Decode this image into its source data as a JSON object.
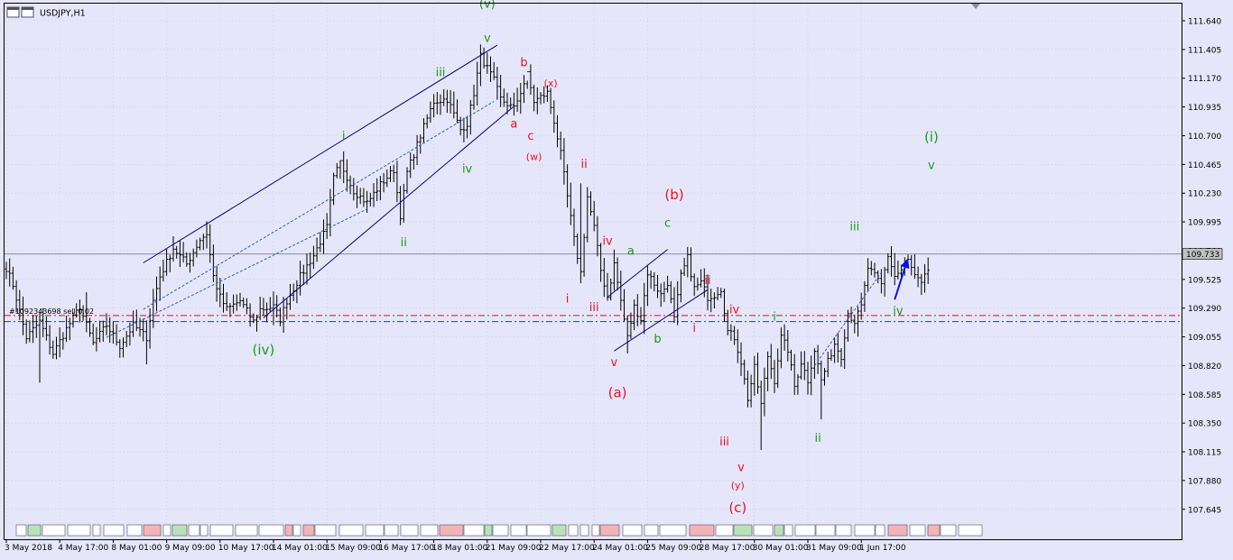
{
  "symbol": "USDJPY,H1",
  "colors": {
    "background": "#e6e6fa",
    "grid": "#c7c7d9",
    "bar": "#000000",
    "channel": "#000080",
    "green_label": "#1a9a1a",
    "red_label": "#e8141e",
    "level_red": "#d21414",
    "level_blue": "#1e3cb4",
    "bid_line": "#8c8c9c",
    "arrow": "#0a14dc",
    "price_tag": "#c0c0c0"
  },
  "chart_data": {
    "type": "ohlc",
    "timeframe": "H1",
    "ylim": [
      107.4,
      111.78
    ],
    "xlim": [
      0,
      318
    ],
    "current_price": "109.733",
    "y_ticks": [
      "111.640",
      "111.405",
      "111.170",
      "110.935",
      "110.700",
      "110.465",
      "110.230",
      "109.995",
      "109.760",
      "109.525",
      "109.290",
      "109.055",
      "108.820",
      "108.585",
      "108.350",
      "108.115",
      "107.880",
      "107.645"
    ],
    "x_ticks": [
      {
        "bar": 0,
        "label": "3 May 2018"
      },
      {
        "bar": 16,
        "label": "4 May 17:00"
      },
      {
        "bar": 32,
        "label": "8 May 01:00"
      },
      {
        "bar": 48,
        "label": "9 May 09:00"
      },
      {
        "bar": 64,
        "label": "10 May 17:00"
      },
      {
        "bar": 80,
        "label": "14 May 01:00"
      },
      {
        "bar": 96,
        "label": "15 May 09:00"
      },
      {
        "bar": 112,
        "label": "16 May 17:00"
      },
      {
        "bar": 128,
        "label": "18 May 01:00"
      },
      {
        "bar": 144,
        "label": "21 May 09:00"
      },
      {
        "bar": 160,
        "label": "22 May 17:00"
      },
      {
        "bar": 176,
        "label": "24 May 01:00"
      },
      {
        "bar": 192,
        "label": "25 May 09:00"
      },
      {
        "bar": 208,
        "label": "28 May 17:00"
      },
      {
        "bar": 224,
        "label": "30 May 01:00"
      },
      {
        "bar": 240,
        "label": "31 May 09:00"
      },
      {
        "bar": 256,
        "label": "1 Jun 17:00"
      }
    ],
    "price_path": [
      [
        0,
        109.62
      ],
      [
        2,
        109.48
      ],
      [
        6,
        109.05
      ],
      [
        10,
        109.18
      ],
      [
        14,
        108.92
      ],
      [
        18,
        109.12
      ],
      [
        22,
        109.3
      ],
      [
        26,
        109.0
      ],
      [
        30,
        109.15
      ],
      [
        34,
        108.98
      ],
      [
        38,
        109.15
      ],
      [
        42,
        109.05
      ],
      [
        44,
        109.35
      ],
      [
        46,
        109.55
      ],
      [
        50,
        109.78
      ],
      [
        54,
        109.65
      ],
      [
        58,
        109.85
      ],
      [
        60,
        109.9
      ],
      [
        62,
        109.55
      ],
      [
        64,
        109.38
      ],
      [
        66,
        109.28
      ],
      [
        70,
        109.35
      ],
      [
        74,
        109.18
      ],
      [
        76,
        109.28
      ],
      [
        80,
        109.3
      ],
      [
        82,
        109.2
      ],
      [
        84,
        109.35
      ],
      [
        88,
        109.55
      ],
      [
        92,
        109.72
      ],
      [
        96,
        109.95
      ],
      [
        98,
        110.35
      ],
      [
        100,
        110.48
      ],
      [
        104,
        110.25
      ],
      [
        108,
        110.15
      ],
      [
        112,
        110.3
      ],
      [
        116,
        110.42
      ],
      [
        118,
        110.05
      ],
      [
        120,
        110.4
      ],
      [
        124,
        110.7
      ],
      [
        128,
        110.98
      ],
      [
        132,
        111.0
      ],
      [
        136,
        110.75
      ],
      [
        138,
        110.8
      ],
      [
        140,
        111.05
      ],
      [
        142,
        111.35
      ],
      [
        144,
        111.25
      ],
      [
        146,
        111.15
      ],
      [
        148,
        111.0
      ],
      [
        152,
        110.92
      ],
      [
        156,
        111.2
      ],
      [
        158,
        110.98
      ],
      [
        162,
        111.05
      ],
      [
        164,
        110.82
      ],
      [
        166,
        110.55
      ],
      [
        170,
        109.85
      ],
      [
        172,
        109.58
      ],
      [
        174,
        110.2
      ],
      [
        176,
        109.95
      ],
      [
        178,
        109.6
      ],
      [
        180,
        109.38
      ],
      [
        182,
        109.65
      ],
      [
        184,
        109.35
      ],
      [
        186,
        109.05
      ],
      [
        188,
        109.3
      ],
      [
        190,
        109.2
      ],
      [
        192,
        109.58
      ],
      [
        196,
        109.4
      ],
      [
        198,
        109.5
      ],
      [
        200,
        109.2
      ],
      [
        202,
        109.55
      ],
      [
        204,
        109.7
      ],
      [
        206,
        109.45
      ],
      [
        208,
        109.5
      ],
      [
        210,
        109.38
      ],
      [
        212,
        109.4
      ],
      [
        214,
        109.45
      ],
      [
        216,
        109.1
      ],
      [
        218,
        109.05
      ],
      [
        220,
        108.85
      ],
      [
        222,
        108.55
      ],
      [
        224,
        108.8
      ],
      [
        226,
        108.5
      ],
      [
        228,
        108.9
      ],
      [
        230,
        108.7
      ],
      [
        232,
        109.05
      ],
      [
        234,
        108.95
      ],
      [
        236,
        108.65
      ],
      [
        238,
        108.85
      ],
      [
        240,
        108.7
      ],
      [
        242,
        108.95
      ],
      [
        244,
        108.7
      ],
      [
        246,
        108.85
      ],
      [
        248,
        109.0
      ],
      [
        250,
        108.9
      ],
      [
        252,
        109.25
      ],
      [
        254,
        109.18
      ],
      [
        256,
        109.3
      ],
      [
        258,
        109.62
      ],
      [
        262,
        109.48
      ],
      [
        264,
        109.72
      ],
      [
        266,
        109.55
      ],
      [
        268,
        109.6
      ],
      [
        270,
        109.68
      ],
      [
        272,
        109.55
      ],
      [
        274,
        109.48
      ],
      [
        276,
        109.6
      ]
    ],
    "extremes": [
      {
        "bar": 10,
        "low": 108.68
      },
      {
        "bar": 24,
        "high": 109.42
      },
      {
        "bar": 42,
        "low": 108.83
      },
      {
        "bar": 60,
        "high": 110.0
      },
      {
        "bar": 80,
        "low": 109.15
      },
      {
        "bar": 100,
        "high": 110.5
      },
      {
        "bar": 144,
        "high": 111.38
      },
      {
        "bar": 156,
        "high": 111.15
      },
      {
        "bar": 172,
        "high": 110.31
      },
      {
        "bar": 186,
        "low": 108.92
      },
      {
        "bar": 204,
        "high": 109.79
      },
      {
        "bar": 226,
        "low": 108.13
      },
      {
        "bar": 244,
        "low": 108.38
      },
      {
        "bar": 266,
        "high": 109.74
      }
    ],
    "levels": [
      {
        "price": 109.23,
        "style": "dash-dot",
        "color": "red"
      },
      {
        "price": 109.18,
        "style": "dash-dot",
        "color": "blue"
      },
      {
        "price": 109.733,
        "style": "solid",
        "color": "grey"
      }
    ],
    "trendlines": [
      {
        "from": [
          41,
          109.66
        ],
        "to": [
          147,
          111.44
        ],
        "style": "solid"
      },
      {
        "from": [
          77,
          109.21
        ],
        "to": [
          152,
          110.94
        ],
        "style": "solid"
      },
      {
        "from": [
          41,
          109.28
        ],
        "to": [
          146,
          110.98
        ],
        "style": "dotted"
      },
      {
        "from": [
          30,
          109.05
        ],
        "to": [
          108,
          110.1
        ],
        "style": "dotted"
      },
      {
        "from": [
          180,
          109.38
        ],
        "to": [
          198,
          109.77
        ],
        "style": "solid"
      },
      {
        "from": [
          182,
          108.94
        ],
        "to": [
          210,
          109.44
        ],
        "style": "solid"
      },
      {
        "from": [
          242,
          108.82
        ],
        "to": [
          262,
          109.58
        ],
        "style": "dotted"
      }
    ],
    "arrow": {
      "from": [
        266,
        109.36
      ],
      "to": [
        270,
        109.7
      ]
    },
    "annotations": [
      {
        "text": "(v)",
        "bar": 144,
        "price": 111.78,
        "color": "green"
      },
      {
        "text": "v",
        "bar": 144,
        "price": 111.5,
        "color": "green"
      },
      {
        "text": "b",
        "bar": 155,
        "price": 111.3,
        "color": "red"
      },
      {
        "text": "(x)",
        "bar": 163,
        "price": 111.13,
        "color": "red",
        "small": true
      },
      {
        "text": "iii",
        "bar": 130,
        "price": 111.22,
        "color": "green"
      },
      {
        "text": "a",
        "bar": 152,
        "price": 110.8,
        "color": "red"
      },
      {
        "text": "c",
        "bar": 157,
        "price": 110.7,
        "color": "red"
      },
      {
        "text": "(w)",
        "bar": 158,
        "price": 110.53,
        "color": "red",
        "small": true
      },
      {
        "text": "i",
        "bar": 101,
        "price": 110.7,
        "color": "green"
      },
      {
        "text": "iv",
        "bar": 138,
        "price": 110.43,
        "color": "green"
      },
      {
        "text": "ii",
        "bar": 119,
        "price": 109.83,
        "color": "green"
      },
      {
        "text": "(iv)",
        "bar": 77,
        "price": 108.95,
        "color": "green",
        "big": true
      },
      {
        "text": "ii",
        "bar": 173,
        "price": 110.47,
        "color": "red"
      },
      {
        "text": "(b)",
        "bar": 200,
        "price": 110.22,
        "color": "red",
        "big": true
      },
      {
        "text": "c",
        "bar": 198,
        "price": 109.99,
        "color": "green"
      },
      {
        "text": "iv",
        "bar": 180,
        "price": 109.84,
        "color": "red"
      },
      {
        "text": "a",
        "bar": 187,
        "price": 109.76,
        "color": "green"
      },
      {
        "text": "ii",
        "bar": 210,
        "price": 109.52,
        "color": "red"
      },
      {
        "text": "i",
        "bar": 168,
        "price": 109.37,
        "color": "red"
      },
      {
        "text": "iii",
        "bar": 176,
        "price": 109.3,
        "color": "red"
      },
      {
        "text": "iv",
        "bar": 218,
        "price": 109.28,
        "color": "red"
      },
      {
        "text": "i",
        "bar": 230,
        "price": 109.22,
        "color": "green"
      },
      {
        "text": "i",
        "bar": 206,
        "price": 109.13,
        "color": "red"
      },
      {
        "text": "b",
        "bar": 195,
        "price": 109.04,
        "color": "green"
      },
      {
        "text": "v",
        "bar": 182,
        "price": 108.85,
        "color": "red"
      },
      {
        "text": "(a)",
        "bar": 183,
        "price": 108.6,
        "color": "red",
        "big": true
      },
      {
        "text": "iii",
        "bar": 215,
        "price": 108.2,
        "color": "red"
      },
      {
        "text": "v",
        "bar": 220,
        "price": 107.99,
        "color": "red"
      },
      {
        "text": "(y)",
        "bar": 219,
        "price": 107.84,
        "color": "red",
        "small": true
      },
      {
        "text": "(c)",
        "bar": 219,
        "price": 107.66,
        "color": "red",
        "big": true
      },
      {
        "text": "ii",
        "bar": 243,
        "price": 108.23,
        "color": "green"
      },
      {
        "text": "iii",
        "bar": 254,
        "price": 109.96,
        "color": "green"
      },
      {
        "text": "iv",
        "bar": 267,
        "price": 109.27,
        "color": "green"
      },
      {
        "text": "(i)",
        "bar": 277,
        "price": 110.69,
        "color": "green",
        "big": true
      },
      {
        "text": "v",
        "bar": 277,
        "price": 110.46,
        "color": "green"
      }
    ],
    "level_caption": "#1092343698 sell 0.02"
  }
}
